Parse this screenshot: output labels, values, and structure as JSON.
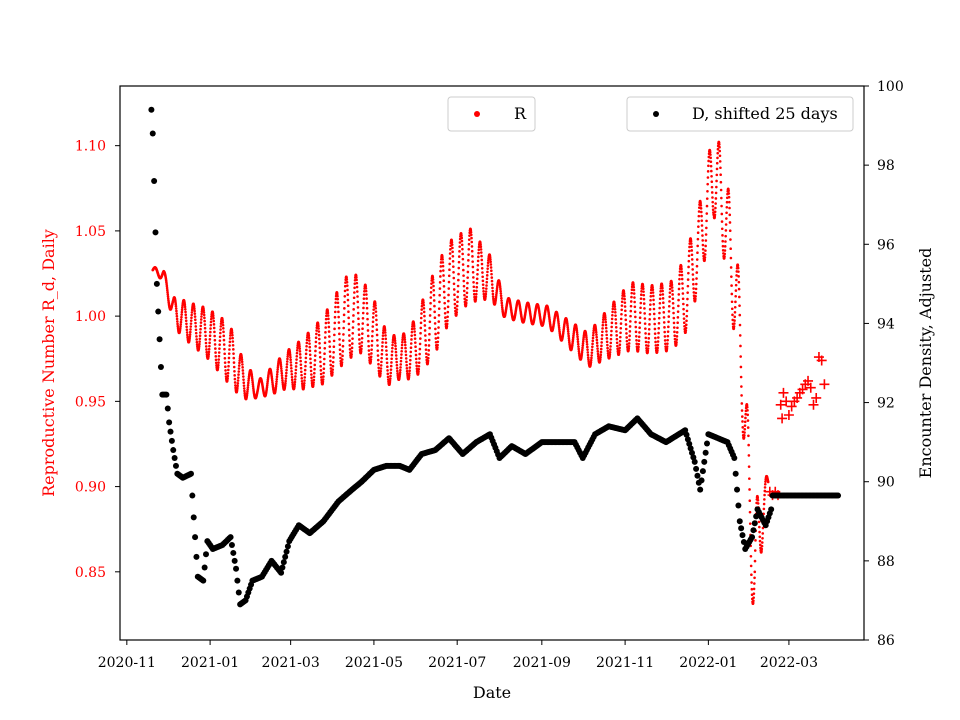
{
  "chart_data": {
    "type": "scatter",
    "title": "",
    "xlabel": "Date",
    "ylabel_left": "Reproductive Number R_d, Daily",
    "ylabel_right": "Encounter Density, Adjusted",
    "xlim": [
      "2020-10-27",
      "2022-04-25"
    ],
    "ylim_left": [
      0.81,
      1.135
    ],
    "ylim_right": [
      86.0,
      100.0
    ],
    "grid": false,
    "x_ticks": [
      "2020-11",
      "2021-01",
      "2021-03",
      "2021-05",
      "2021-07",
      "2021-09",
      "2021-11",
      "2022-01",
      "2022-03"
    ],
    "y_ticks_left": [
      "0.85",
      "0.90",
      "0.95",
      "1.00",
      "1.05",
      "1.10"
    ],
    "y_ticks_right": [
      "86",
      "88",
      "90",
      "92",
      "94",
      "96",
      "98",
      "100"
    ],
    "legend_left": {
      "label": "R",
      "placement": "upper-center",
      "color": "#ff0000"
    },
    "legend_right": {
      "label": "D, shifted 25 days",
      "placement": "upper-right",
      "color": "#000000"
    },
    "colors": {
      "R": "#ff0000",
      "D": "#000000",
      "left_axis_text": "#ff0000"
    },
    "series": [
      {
        "name": "R",
        "axis": "left",
        "marker": "dot",
        "trend": [
          [
            "2020-11-20",
            1.027
          ],
          [
            "2020-11-28",
            1.024
          ],
          [
            "2020-12-05",
            1.003
          ],
          [
            "2020-12-15",
            0.997
          ],
          [
            "2020-12-30",
            0.99
          ],
          [
            "2021-01-15",
            0.978
          ],
          [
            "2021-01-25",
            0.963
          ],
          [
            "2021-02-05",
            0.957
          ],
          [
            "2021-02-15",
            0.962
          ],
          [
            "2021-02-25",
            0.968
          ],
          [
            "2021-03-10",
            0.972
          ],
          [
            "2021-03-25",
            0.98
          ],
          [
            "2021-04-10",
            0.998
          ],
          [
            "2021-04-20",
            1.002
          ],
          [
            "2021-05-01",
            0.99
          ],
          [
            "2021-05-10",
            0.975
          ],
          [
            "2021-05-20",
            0.975
          ],
          [
            "2021-05-30",
            0.98
          ],
          [
            "2021-06-10",
            0.995
          ],
          [
            "2021-06-25",
            1.02
          ],
          [
            "2021-07-10",
            1.03
          ],
          [
            "2021-07-25",
            1.023
          ],
          [
            "2021-08-05",
            1.005
          ],
          [
            "2021-08-20",
            1.002
          ],
          [
            "2021-09-05",
            1.0
          ],
          [
            "2021-09-20",
            0.99
          ],
          [
            "2021-10-05",
            0.98
          ],
          [
            "2021-10-20",
            0.99
          ],
          [
            "2021-11-05",
            1.0
          ],
          [
            "2021-11-20",
            0.998
          ],
          [
            "2021-12-05",
            1.0
          ],
          [
            "2021-12-15",
            1.012
          ],
          [
            "2021-12-25",
            1.04
          ],
          [
            "2022-01-05",
            1.085
          ],
          [
            "2022-01-12",
            1.065
          ],
          [
            "2022-01-20",
            1.02
          ],
          [
            "2022-01-26",
            0.97
          ],
          [
            "2022-01-31",
            0.89
          ],
          [
            "2022-02-04",
            0.85
          ],
          [
            "2022-02-10",
            0.89
          ],
          [
            "2022-02-14",
            0.9
          ]
        ],
        "amplitude": [
          [
            "2020-11-20",
            0.002
          ],
          [
            "2020-11-28",
            0.003
          ],
          [
            "2020-12-08",
            0.01
          ],
          [
            "2021-01-15",
            0.018
          ],
          [
            "2021-02-05",
            0.005
          ],
          [
            "2021-03-01",
            0.012
          ],
          [
            "2021-04-10",
            0.025
          ],
          [
            "2021-05-01",
            0.02
          ],
          [
            "2021-05-20",
            0.012
          ],
          [
            "2021-06-15",
            0.025
          ],
          [
            "2021-07-10",
            0.022
          ],
          [
            "2021-08-05",
            0.006
          ],
          [
            "2021-09-05",
            0.006
          ],
          [
            "2021-10-05",
            0.01
          ],
          [
            "2021-11-05",
            0.02
          ],
          [
            "2021-12-01",
            0.02
          ],
          [
            "2022-01-01",
            0.025
          ],
          [
            "2022-01-15",
            0.03
          ],
          [
            "2022-02-05",
            0.035
          ],
          [
            "2022-02-14",
            0.005
          ]
        ],
        "period_days": 7
      },
      {
        "name": "R",
        "axis": "left",
        "marker": "plus",
        "points": [
          [
            "2022-02-15",
            0.897
          ],
          [
            "2022-02-17",
            0.895
          ],
          [
            "2022-02-19",
            0.897
          ],
          [
            "2022-02-21",
            0.895
          ],
          [
            "2022-02-23",
            0.948
          ],
          [
            "2022-02-24",
            0.94
          ],
          [
            "2022-02-25",
            0.955
          ],
          [
            "2022-02-27",
            0.95
          ],
          [
            "2022-03-01",
            0.942
          ],
          [
            "2022-03-03",
            0.947
          ],
          [
            "2022-03-05",
            0.95
          ],
          [
            "2022-03-07",
            0.952
          ],
          [
            "2022-03-09",
            0.955
          ],
          [
            "2022-03-11",
            0.957
          ],
          [
            "2022-03-13",
            0.96
          ],
          [
            "2022-03-15",
            0.962
          ],
          [
            "2022-03-17",
            0.958
          ],
          [
            "2022-03-19",
            0.948
          ],
          [
            "2022-03-21",
            0.952
          ],
          [
            "2022-03-23",
            0.976
          ],
          [
            "2022-03-25",
            0.974
          ],
          [
            "2022-03-27",
            0.96
          ]
        ]
      },
      {
        "name": "D, shifted 25 days",
        "axis": "right",
        "marker": "dot",
        "trend": [
          [
            "2020-11-19",
            99.4
          ],
          [
            "2020-11-20",
            98.8
          ],
          [
            "2020-11-21",
            97.6
          ],
          [
            "2020-11-22",
            96.3
          ],
          [
            "2020-11-23",
            95.0
          ],
          [
            "2020-11-25",
            93.6
          ],
          [
            "2020-11-27",
            92.2
          ],
          [
            "2020-11-30",
            92.2
          ],
          [
            "2020-12-02",
            91.5
          ],
          [
            "2020-12-05",
            90.8
          ],
          [
            "2020-12-08",
            90.2
          ],
          [
            "2020-12-12",
            90.1
          ],
          [
            "2020-12-18",
            90.2
          ],
          [
            "2020-12-20",
            89.1
          ],
          [
            "2020-12-23",
            87.6
          ],
          [
            "2020-12-27",
            87.5
          ],
          [
            "2020-12-30",
            88.5
          ],
          [
            "2021-01-03",
            88.3
          ],
          [
            "2021-01-10",
            88.4
          ],
          [
            "2021-01-16",
            88.6
          ],
          [
            "2021-01-20",
            87.8
          ],
          [
            "2021-01-23",
            86.9
          ],
          [
            "2021-01-27",
            87.0
          ],
          [
            "2021-02-01",
            87.5
          ],
          [
            "2021-02-08",
            87.6
          ],
          [
            "2021-02-15",
            88.0
          ],
          [
            "2021-02-22",
            87.7
          ],
          [
            "2021-02-28",
            88.5
          ],
          [
            "2021-03-07",
            88.9
          ],
          [
            "2021-03-15",
            88.7
          ],
          [
            "2021-03-25",
            89.0
          ],
          [
            "2021-04-05",
            89.5
          ],
          [
            "2021-04-15",
            89.8
          ],
          [
            "2021-04-22",
            90.0
          ],
          [
            "2021-05-01",
            90.3
          ],
          [
            "2021-05-10",
            90.4
          ],
          [
            "2021-05-20",
            90.4
          ],
          [
            "2021-05-27",
            90.3
          ],
          [
            "2021-06-05",
            90.7
          ],
          [
            "2021-06-15",
            90.8
          ],
          [
            "2021-06-25",
            91.1
          ],
          [
            "2021-07-05",
            90.7
          ],
          [
            "2021-07-15",
            91.0
          ],
          [
            "2021-07-25",
            91.2
          ],
          [
            "2021-08-01",
            90.6
          ],
          [
            "2021-08-10",
            90.9
          ],
          [
            "2021-08-20",
            90.7
          ],
          [
            "2021-09-01",
            91.0
          ],
          [
            "2021-09-15",
            91.0
          ],
          [
            "2021-09-25",
            91.0
          ],
          [
            "2021-10-01",
            90.6
          ],
          [
            "2021-10-10",
            91.2
          ],
          [
            "2021-10-20",
            91.4
          ],
          [
            "2021-11-01",
            91.3
          ],
          [
            "2021-11-10",
            91.6
          ],
          [
            "2021-11-20",
            91.2
          ],
          [
            "2021-12-01",
            91.0
          ],
          [
            "2021-12-15",
            91.3
          ],
          [
            "2021-12-22",
            90.5
          ],
          [
            "2021-12-26",
            89.8
          ],
          [
            "2022-01-01",
            91.2
          ],
          [
            "2022-01-08",
            91.1
          ],
          [
            "2022-01-15",
            91.0
          ],
          [
            "2022-01-20",
            90.6
          ],
          [
            "2022-01-24",
            89.0
          ],
          [
            "2022-01-28",
            88.3
          ],
          [
            "2022-02-02",
            88.6
          ],
          [
            "2022-02-06",
            89.3
          ],
          [
            "2022-02-12",
            88.9
          ],
          [
            "2022-02-16",
            89.3
          ]
        ],
        "flat": {
          "from": "2022-02-17",
          "to": "2022-04-06",
          "value": 89.65
        }
      }
    ]
  }
}
